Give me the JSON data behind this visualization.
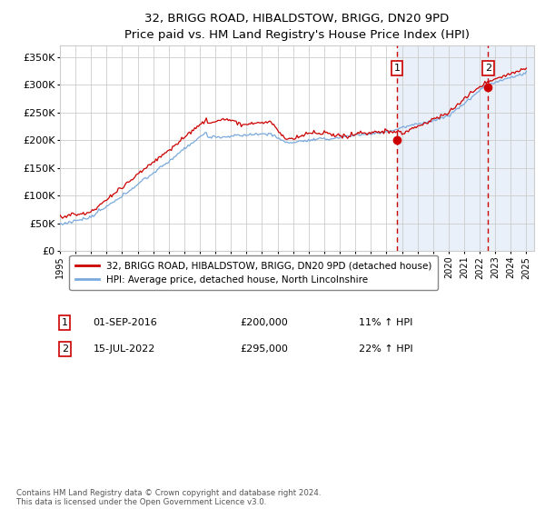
{
  "title": "32, BRIGG ROAD, HIBALDSTOW, BRIGG, DN20 9PD",
  "subtitle": "Price paid vs. HM Land Registry's House Price Index (HPI)",
  "ylabel_ticks": [
    "£0",
    "£50K",
    "£100K",
    "£150K",
    "£200K",
    "£250K",
    "£300K",
    "£350K"
  ],
  "ylim": [
    0,
    370000
  ],
  "xlim_start": 1995.0,
  "xlim_end": 2025.5,
  "sale1_year": 2016.67,
  "sale1_price": 200000,
  "sale1_label": "1",
  "sale2_year": 2022.54,
  "sale2_price": 295000,
  "sale2_label": "2",
  "table_rows": [
    {
      "num": "1",
      "date": "01-SEP-2016",
      "price": "£200,000",
      "hpi": "11% ↑ HPI"
    },
    {
      "num": "2",
      "date": "15-JUL-2022",
      "price": "£295,000",
      "hpi": "22% ↑ HPI"
    }
  ],
  "legend_entry1": "32, BRIGG ROAD, HIBALDSTOW, BRIGG, DN20 9PD (detached house)",
  "legend_entry2": "HPI: Average price, detached house, North Lincolnshire",
  "footnote": "Contains HM Land Registry data © Crown copyright and database right 2024.\nThis data is licensed under the Open Government Licence v3.0.",
  "red_color": "#cc0000",
  "blue_color": "#7aaadd",
  "bg_shaded": "#dce6f5",
  "grid_color": "#cccccc",
  "sale_marker_color": "#cc0000",
  "dashed_line_color": "#cc0000"
}
